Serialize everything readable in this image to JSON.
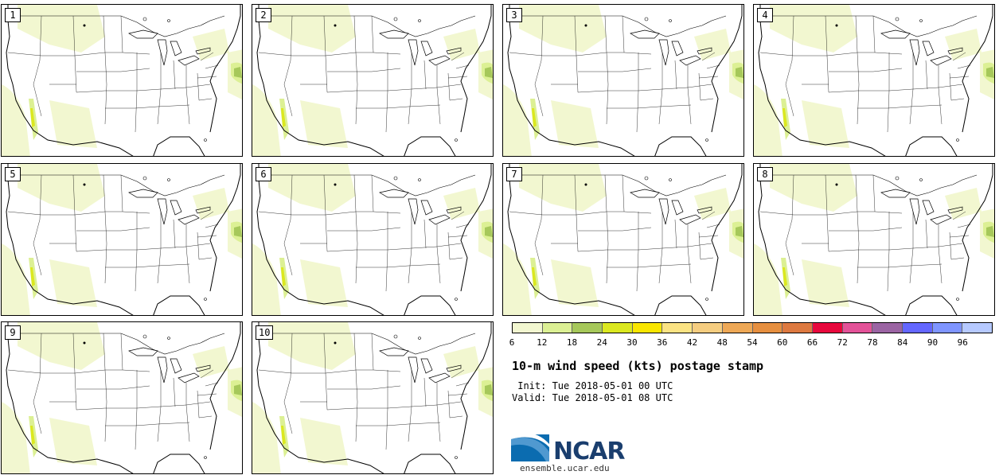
{
  "panels": [
    {
      "label": "1"
    },
    {
      "label": "2"
    },
    {
      "label": "3"
    },
    {
      "label": "4"
    },
    {
      "label": "5"
    },
    {
      "label": "6"
    },
    {
      "label": "7"
    },
    {
      "label": "8"
    },
    {
      "label": "9"
    },
    {
      "label": "10"
    }
  ],
  "colorbar": {
    "colors": [
      "#f2f7d0",
      "#dcf094",
      "#a6c85a",
      "#dbe820",
      "#f9e600",
      "#fbe383",
      "#f5cd80",
      "#eea856",
      "#e68f3f",
      "#dd7940",
      "#e8083d",
      "#e35298",
      "#9b64a3",
      "#6467ff",
      "#7f95ff",
      "#b6c9ff"
    ],
    "tick_labels": [
      "6",
      "12",
      "18",
      "24",
      "30",
      "36",
      "42",
      "48",
      "54",
      "60",
      "66",
      "72",
      "78",
      "84",
      "90",
      "96"
    ]
  },
  "title": "10-m wind speed (kts) postage stamp",
  "init_line": " Init: Tue 2018-05-01 00 UTC",
  "valid_line": "Valid: Tue 2018-05-01 08 UTC",
  "logo": {
    "text": "NCAR",
    "name": "ncar-logo"
  },
  "website": "ensemble.ucar.edu"
}
